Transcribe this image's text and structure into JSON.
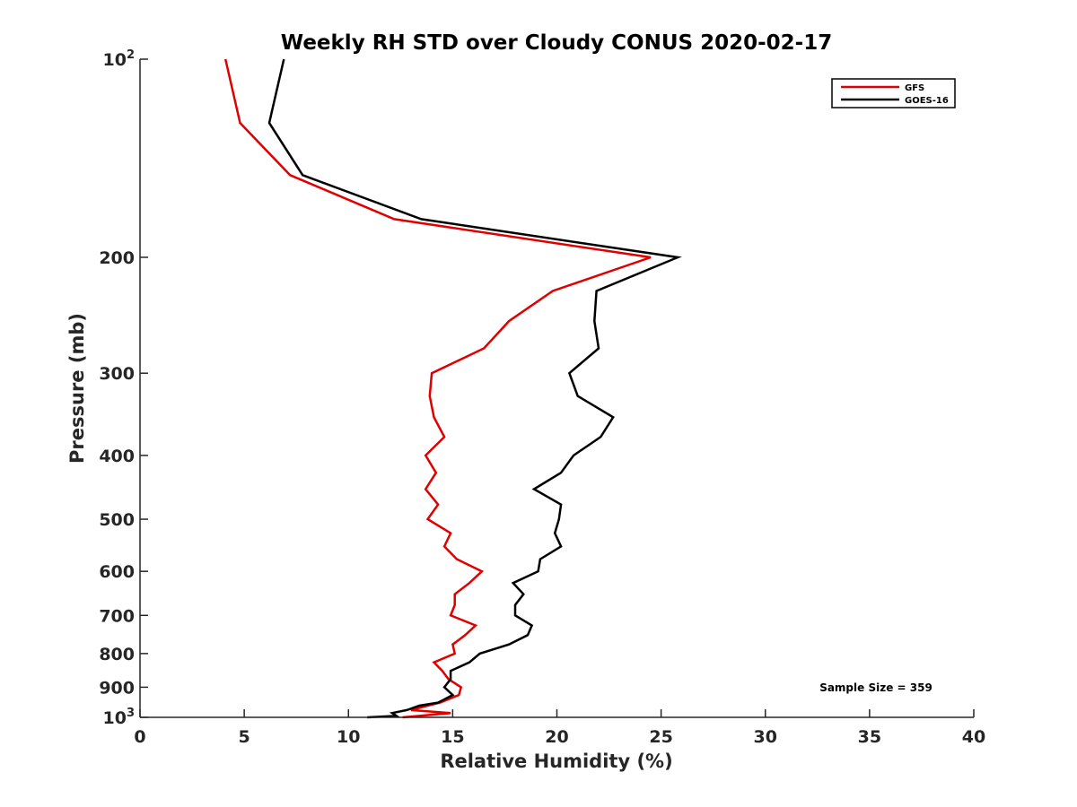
{
  "chart_data": {
    "type": "line",
    "title": "Weekly RH STD over Cloudy CONUS 2020-02-17",
    "xlabel": "Relative Humidity (%)",
    "ylabel": "Pressure (mb)",
    "xlim": [
      0,
      40
    ],
    "ylim": [
      100,
      1000
    ],
    "y_scale": "log",
    "y_reversed": true,
    "grid": false,
    "legend_position": "top-right",
    "x_ticks": [
      0,
      5,
      10,
      15,
      20,
      25,
      30,
      35,
      40
    ],
    "x_tick_labels": [
      "0",
      "5",
      "10",
      "15",
      "20",
      "25",
      "30",
      "35",
      "40"
    ],
    "y_ticks": [
      {
        "value": 100,
        "base": "10",
        "exp": "2"
      },
      {
        "value": 200,
        "label": "200"
      },
      {
        "value": 300,
        "label": "300"
      },
      {
        "value": 400,
        "label": "400"
      },
      {
        "value": 500,
        "label": "500"
      },
      {
        "value": 600,
        "label": "600"
      },
      {
        "value": 700,
        "label": "700"
      },
      {
        "value": 800,
        "label": "800"
      },
      {
        "value": 900,
        "label": "900"
      },
      {
        "value": 1000,
        "base": "10",
        "exp": "3"
      }
    ],
    "annotation": "Sample Size = 359",
    "series": [
      {
        "name": "GFS",
        "color": "#e00000",
        "points": [
          [
            4.1,
            100
          ],
          [
            4.8,
            125
          ],
          [
            7.2,
            150
          ],
          [
            12.2,
            175
          ],
          [
            24.5,
            200
          ],
          [
            19.8,
            225
          ],
          [
            17.7,
            250
          ],
          [
            16.5,
            275
          ],
          [
            14.0,
            300
          ],
          [
            13.9,
            325
          ],
          [
            14.1,
            350
          ],
          [
            14.6,
            375
          ],
          [
            13.7,
            400
          ],
          [
            14.2,
            425
          ],
          [
            13.7,
            450
          ],
          [
            14.3,
            475
          ],
          [
            13.8,
            500
          ],
          [
            14.9,
            525
          ],
          [
            14.6,
            550
          ],
          [
            15.2,
            575
          ],
          [
            16.4,
            600
          ],
          [
            15.8,
            625
          ],
          [
            15.1,
            650
          ],
          [
            15.1,
            675
          ],
          [
            14.9,
            700
          ],
          [
            16.1,
            725
          ],
          [
            15.6,
            750
          ],
          [
            15.0,
            775
          ],
          [
            15.1,
            800
          ],
          [
            14.1,
            825
          ],
          [
            14.5,
            850
          ],
          [
            14.8,
            875
          ],
          [
            15.4,
            900
          ],
          [
            15.3,
            925
          ],
          [
            14.4,
            950
          ],
          [
            13.8,
            960
          ],
          [
            13.0,
            975
          ],
          [
            14.9,
            985
          ],
          [
            12.6,
            1000
          ]
        ]
      },
      {
        "name": "GOES-16",
        "color": "#000000",
        "points": [
          [
            6.9,
            100
          ],
          [
            6.2,
            125
          ],
          [
            7.8,
            150
          ],
          [
            13.5,
            175
          ],
          [
            25.8,
            200
          ],
          [
            21.9,
            225
          ],
          [
            21.8,
            250
          ],
          [
            22.0,
            275
          ],
          [
            20.6,
            300
          ],
          [
            21.0,
            325
          ],
          [
            22.7,
            350
          ],
          [
            22.1,
            375
          ],
          [
            20.8,
            400
          ],
          [
            20.2,
            425
          ],
          [
            18.9,
            450
          ],
          [
            20.2,
            475
          ],
          [
            20.1,
            500
          ],
          [
            19.9,
            525
          ],
          [
            20.2,
            550
          ],
          [
            19.2,
            575
          ],
          [
            19.1,
            600
          ],
          [
            17.9,
            625
          ],
          [
            18.4,
            650
          ],
          [
            18.0,
            675
          ],
          [
            18.0,
            700
          ],
          [
            18.8,
            725
          ],
          [
            18.6,
            750
          ],
          [
            17.7,
            775
          ],
          [
            16.3,
            800
          ],
          [
            15.8,
            825
          ],
          [
            14.9,
            850
          ],
          [
            14.9,
            875
          ],
          [
            14.6,
            900
          ],
          [
            15.0,
            925
          ],
          [
            14.3,
            950
          ],
          [
            13.4,
            960
          ],
          [
            12.8,
            975
          ],
          [
            12.1,
            985
          ],
          [
            12.3,
            995
          ],
          [
            10.9,
            1000
          ]
        ]
      }
    ]
  }
}
